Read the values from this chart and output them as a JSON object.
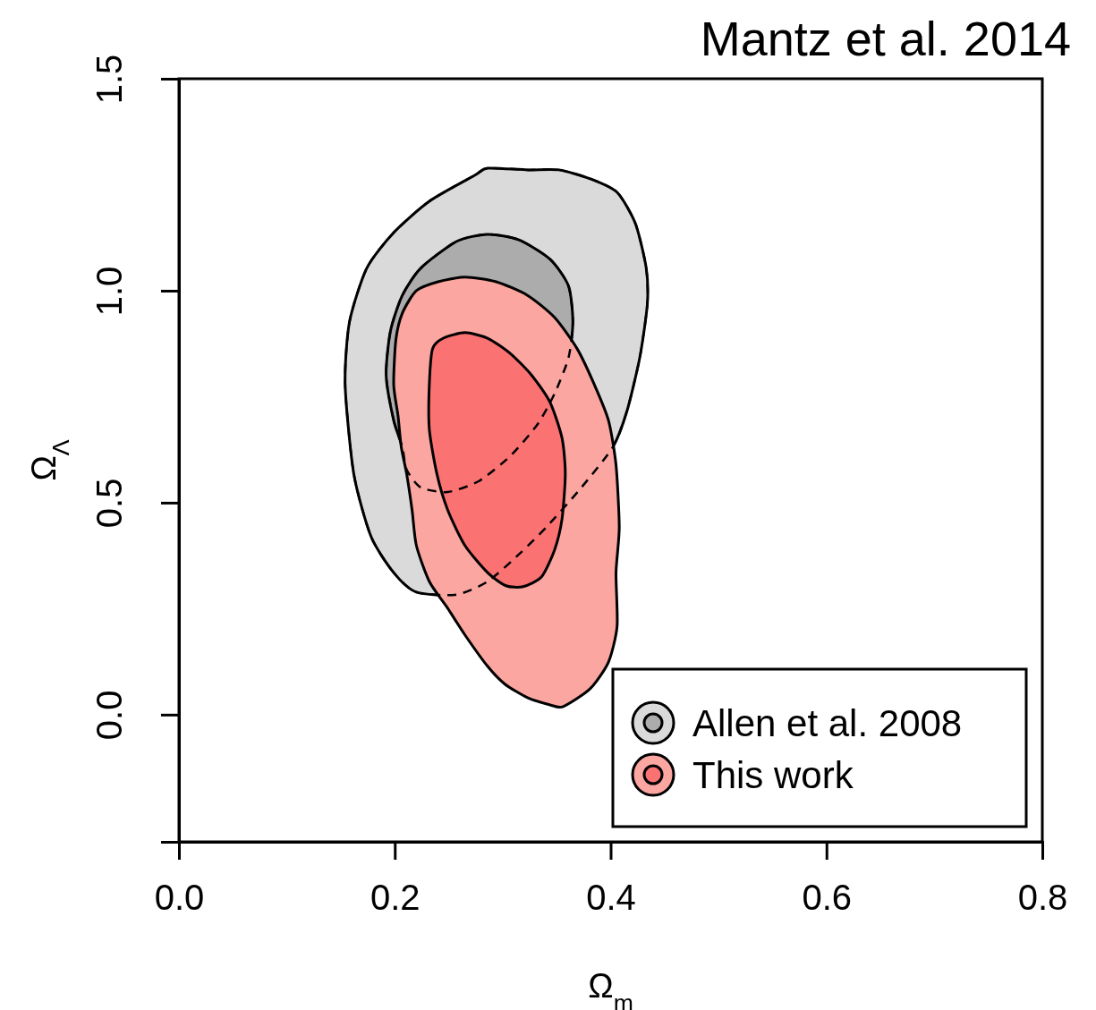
{
  "chart_data": {
    "type": "area",
    "title": "Mantz et al. 2014",
    "xlabel": "Ω$_{m}$",
    "ylabel": "Ω$_{Λ}$",
    "xlim": [
      0,
      0.8
    ],
    "xticks": [
      {
        "value": 0,
        "label": "0.0"
      },
      0.2,
      0.4,
      0.6,
      0.8
    ],
    "ylim": [
      -0.3,
      1.5
    ],
    "yticks": [
      {
        "value": 0,
        "label": "0.0"
      },
      0.5,
      {
        "value": 1,
        "label": "1.0"
      },
      1.5
    ],
    "legend": "bottom right",
    "grid": false,
    "series": [
      {
        "name": "Allen et al. 2008",
        "color": "#dadada",
        "x": [
          0.22,
          0.199,
          0.178,
          0.162,
          0.154,
          0.158,
          0.174,
          0.199,
          0.232,
          0.274,
          0.286,
          0.323,
          0.352,
          0.381,
          0.406,
          0.423,
          0.433,
          0.434,
          0.427,
          0.415,
          0.402,
          0.373,
          0.34,
          0.315,
          0.286,
          0.257
        ],
        "values": [
          0.289,
          0.335,
          0.42,
          0.568,
          0.778,
          0.926,
          1.053,
          1.137,
          1.211,
          1.272,
          1.289,
          1.285,
          1.285,
          1.264,
          1.232,
          1.158,
          1.053,
          0.968,
          0.842,
          0.715,
          0.631,
          0.536,
          0.441,
          0.378,
          0.314,
          0.283
        ]
      },
      {
        "color": "#acacac",
        "x": [
          0.207,
          0.199,
          0.192,
          0.196,
          0.207,
          0.224,
          0.257,
          0.286,
          0.315,
          0.344,
          0.361,
          0.365,
          0.361,
          0.348,
          0.332,
          0.307,
          0.278,
          0.249,
          0.224,
          0.211
        ],
        "values": [
          0.631,
          0.694,
          0.8,
          0.905,
          0.989,
          1.053,
          1.116,
          1.133,
          1.12,
          1.074,
          1.011,
          0.926,
          0.842,
          0.757,
          0.684,
          0.61,
          0.551,
          0.525,
          0.536,
          0.578
        ]
      },
      {
        "name": "This work",
        "color": "#fba6a0",
        "x": [
          0.203,
          0.199,
          0.201,
          0.207,
          0.22,
          0.24,
          0.265,
          0.294,
          0.323,
          0.348,
          0.369,
          0.385,
          0.398,
          0.405,
          0.408,
          0.405,
          0.406,
          0.398,
          0.381,
          0.356,
          0.344,
          0.323,
          0.302,
          0.286,
          0.265,
          0.249,
          0.232,
          0.22,
          0.216,
          0.211,
          0.206
        ],
        "values": [
          0.705,
          0.778,
          0.884,
          0.947,
          1.0,
          1.021,
          1.032,
          1.021,
          0.989,
          0.937,
          0.863,
          0.778,
          0.694,
          0.589,
          0.441,
          0.335,
          0.209,
          0.124,
          0.061,
          0.019,
          0.023,
          0.04,
          0.072,
          0.114,
          0.188,
          0.251,
          0.314,
          0.399,
          0.483,
          0.568,
          0.631
        ]
      },
      {
        "color": "#fb7272",
        "x": [
          0.232,
          0.235,
          0.245,
          0.265,
          0.286,
          0.307,
          0.327,
          0.344,
          0.355,
          0.358,
          0.355,
          0.348,
          0.336,
          0.319,
          0.303,
          0.286,
          0.265,
          0.249,
          0.239,
          0.232
        ],
        "values": [
          0.778,
          0.863,
          0.888,
          0.901,
          0.888,
          0.852,
          0.8,
          0.736,
          0.652,
          0.568,
          0.462,
          0.388,
          0.325,
          0.302,
          0.304,
          0.335,
          0.399,
          0.483,
          0.568,
          0.673
        ]
      }
    ]
  }
}
